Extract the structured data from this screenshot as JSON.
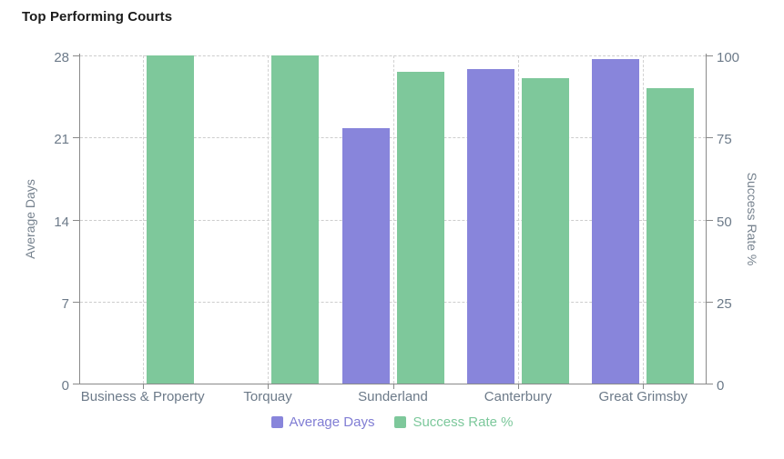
{
  "page": {
    "title": "Top Performing Courts"
  },
  "chart_data": {
    "type": "bar",
    "title": "Top Performing Courts",
    "categories": [
      "Business & Property",
      "Torquay",
      "Sunderland",
      "Canterbury",
      "Great Grimsby"
    ],
    "series": [
      {
        "name": "Average Days",
        "axis": "left",
        "color": "#8885db",
        "text_color": "#807dd4",
        "values": [
          0,
          0,
          21.8,
          26.8,
          27.7
        ]
      },
      {
        "name": "Success Rate %",
        "axis": "right",
        "color": "#7ec89b",
        "text_color": "#7cc89b",
        "values": [
          100,
          100,
          95,
          93,
          90
        ]
      }
    ],
    "left_axis": {
      "label": "Average Days",
      "ticks": [
        0,
        7,
        14,
        21,
        28
      ],
      "min": 0,
      "max": 28
    },
    "right_axis": {
      "label": "Success Rate %",
      "ticks": [
        0,
        25,
        50,
        75,
        100
      ],
      "min": 0,
      "max": 100
    },
    "legend": [
      "Average Days",
      "Success Rate %"
    ],
    "legend_position": "bottom",
    "grid": "dashed",
    "colors": {
      "bar_purple": "#8885db",
      "bar_green": "#7ec89b",
      "gridline": "#cdcdcd",
      "axis_line": "#8a8a8a",
      "tick_label": "#6c7a89",
      "title_text": "#1b1b1b"
    }
  }
}
